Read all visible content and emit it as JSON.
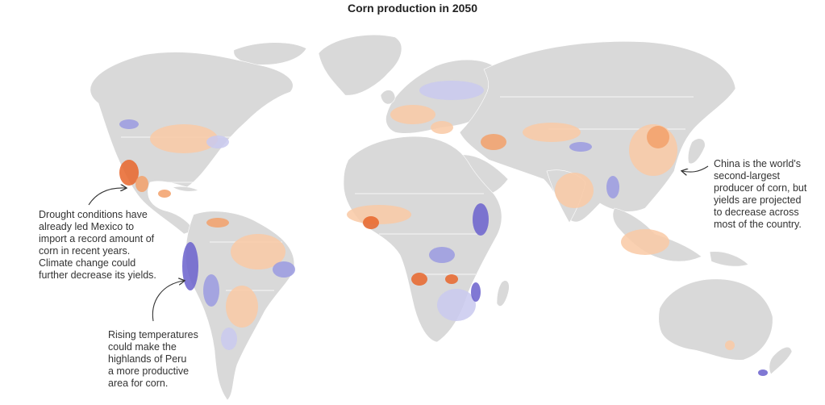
{
  "title": "Corn production in 2050",
  "annotations": {
    "mexico": {
      "lines": [
        "Drought conditions have",
        "already led Mexico to",
        "import a record amount of",
        "corn in recent years.",
        "Climate change could",
        "further decrease its yields."
      ]
    },
    "peru": {
      "lines": [
        "Rising temperatures",
        "could make the",
        "highlands of Peru",
        "a more productive",
        "area for corn."
      ]
    },
    "china": {
      "lines": [
        "China is the world's",
        "second-largest",
        "producer of corn, but",
        "yields are projected",
        "to decrease across",
        "most of the country."
      ]
    }
  },
  "colors": {
    "land": "#d9d9d9",
    "border": "#ffffff",
    "decrease_light": "#f9c9a4",
    "decrease_mid": "#f2a06a",
    "decrease_strong": "#e8652a",
    "increase_light": "#c9c9ee",
    "increase_mid": "#9a9ae0",
    "increase_strong": "#6a60cc"
  }
}
